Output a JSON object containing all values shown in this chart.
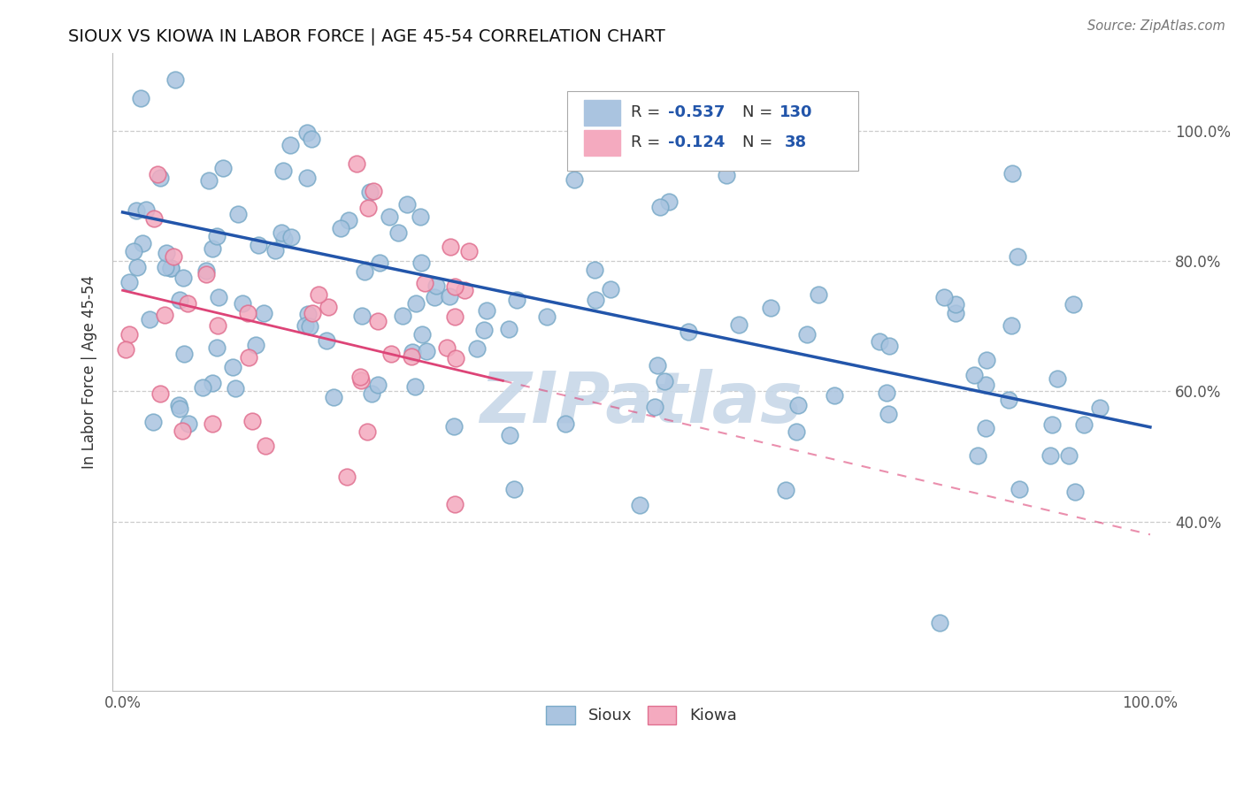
{
  "title": "SIOUX VS KIOWA IN LABOR FORCE | AGE 45-54 CORRELATION CHART",
  "source_text": "Source: ZipAtlas.com",
  "ylabel": "In Labor Force | Age 45-54",
  "sioux_R": -0.537,
  "sioux_N": 130,
  "kiowa_R": -0.124,
  "kiowa_N": 38,
  "blue_color": "#aac4e0",
  "blue_edge_color": "#7aaac8",
  "blue_line_color": "#2255aa",
  "pink_color": "#f4aabf",
  "pink_edge_color": "#e07090",
  "pink_line_color": "#dd4477",
  "background_color": "#ffffff",
  "watermark_color": "#c8d8e8",
  "ytick_positions": [
    0.4,
    0.6,
    0.8,
    1.0
  ],
  "ytick_labels": [
    "40.0%",
    "60.0%",
    "80.0%",
    "100.0%"
  ]
}
